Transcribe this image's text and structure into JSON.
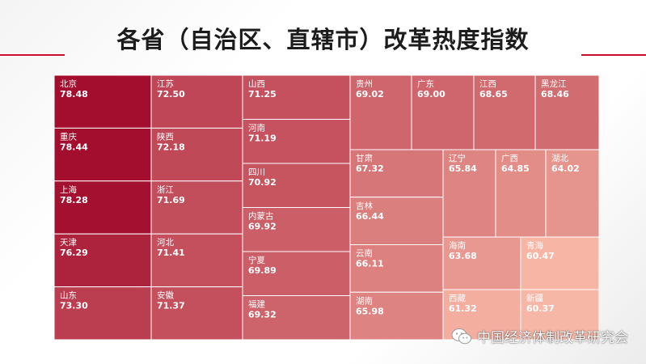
{
  "title": "各省（自治区、直辖市）改革热度指数",
  "watermark": "中国经济体制改革研究会",
  "colors": {
    "accent": "#c8102e",
    "high": "#a30e2e",
    "low": "#f7b7a6"
  },
  "chart_data": {
    "type": "treemap",
    "title": "各省（自治区、直辖市）改革热度指数",
    "items": [
      {
        "name": "北京",
        "value": 78.48
      },
      {
        "name": "重庆",
        "value": 78.44
      },
      {
        "name": "上海",
        "value": 78.28
      },
      {
        "name": "天津",
        "value": 76.29
      },
      {
        "name": "山东",
        "value": 73.3
      },
      {
        "name": "江苏",
        "value": 72.5
      },
      {
        "name": "陕西",
        "value": 72.18
      },
      {
        "name": "浙江",
        "value": 71.69
      },
      {
        "name": "河北",
        "value": 71.41
      },
      {
        "name": "安徽",
        "value": 71.37
      },
      {
        "name": "山西",
        "value": 71.25
      },
      {
        "name": "河南",
        "value": 71.19
      },
      {
        "name": "四川",
        "value": 70.92
      },
      {
        "name": "内蒙古",
        "value": 69.92
      },
      {
        "name": "宁夏",
        "value": 69.89
      },
      {
        "name": "福建",
        "value": 69.32
      },
      {
        "name": "贵州",
        "value": 69.02
      },
      {
        "name": "广东",
        "value": 69.0
      },
      {
        "name": "江西",
        "value": 68.65
      },
      {
        "name": "黑龙江",
        "value": 68.46
      },
      {
        "name": "甘肃",
        "value": 67.32
      },
      {
        "name": "吉林",
        "value": 66.44
      },
      {
        "name": "云南",
        "value": 66.11
      },
      {
        "name": "湖南",
        "value": 65.98
      },
      {
        "name": "辽宁",
        "value": 65.84
      },
      {
        "name": "广西",
        "value": 64.85
      },
      {
        "name": "湖北",
        "value": 64.02
      },
      {
        "name": "海南",
        "value": 63.68
      },
      {
        "name": "西藏",
        "value": 61.32
      },
      {
        "name": "青海",
        "value": 60.47
      },
      {
        "name": "新疆",
        "value": 60.37
      }
    ]
  }
}
